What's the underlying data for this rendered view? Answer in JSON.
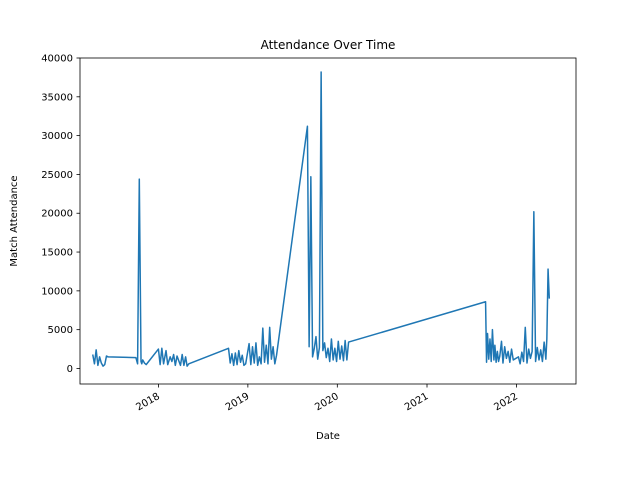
{
  "chart_data": {
    "type": "line",
    "title": "Attendance Over Time",
    "xlabel": "Date",
    "ylabel": "Match Attendance",
    "xlim": [
      "2017-02-15",
      "2022-09-01"
    ],
    "ylim": [
      -2000,
      40000
    ],
    "xticks": [
      {
        "date": "2018-01-01",
        "label": "2018"
      },
      {
        "date": "2019-01-01",
        "label": "2019"
      },
      {
        "date": "2020-01-01",
        "label": "2020"
      },
      {
        "date": "2021-01-01",
        "label": "2021"
      },
      {
        "date": "2022-01-01",
        "label": "2022"
      }
    ],
    "yticks": [
      0,
      5000,
      10000,
      15000,
      20000,
      25000,
      30000,
      35000,
      40000
    ],
    "grid": false,
    "line_color": "#1f77b4",
    "series": [
      {
        "x": [
          "2017-04-08",
          "2017-04-15",
          "2017-04-22",
          "2017-04-29",
          "2017-05-06",
          "2017-05-13",
          "2017-05-20",
          "2017-05-27",
          "2017-06-03",
          "2017-06-10",
          "2017-10-01",
          "2017-10-08",
          "2017-10-15",
          "2017-10-22",
          "2017-10-25",
          "2017-10-29",
          "2017-11-05",
          "2017-11-12",
          "2018-01-01",
          "2018-01-08",
          "2018-01-15",
          "2018-01-22",
          "2018-02-01",
          "2018-02-08",
          "2018-02-18",
          "2018-02-25",
          "2018-03-04",
          "2018-03-11",
          "2018-03-18",
          "2018-03-25",
          "2018-04-01",
          "2018-04-08",
          "2018-04-15",
          "2018-04-22",
          "2018-04-28",
          "2018-05-05",
          "2018-10-14",
          "2018-10-21",
          "2018-10-28",
          "2018-11-04",
          "2018-11-11",
          "2018-11-18",
          "2018-11-25",
          "2018-12-02",
          "2018-12-09",
          "2018-12-16",
          "2018-12-23",
          "2019-01-06",
          "2019-01-13",
          "2019-01-20",
          "2019-01-27",
          "2019-02-03",
          "2019-02-10",
          "2019-02-17",
          "2019-02-24",
          "2019-03-03",
          "2019-03-10",
          "2019-03-17",
          "2019-03-24",
          "2019-03-31",
          "2019-04-07",
          "2019-04-14",
          "2019-04-21",
          "2019-04-28",
          "2019-09-01",
          "2019-09-08",
          "2019-09-15",
          "2019-09-22",
          "2019-09-29",
          "2019-10-06",
          "2019-10-13",
          "2019-10-20",
          "2019-10-27",
          "2019-11-03",
          "2019-11-10",
          "2019-11-17",
          "2019-11-24",
          "2019-12-01",
          "2019-12-08",
          "2019-12-15",
          "2019-12-22",
          "2019-12-29",
          "2020-01-05",
          "2020-01-12",
          "2020-01-19",
          "2020-01-26",
          "2020-02-02",
          "2020-02-09",
          "2020-02-16",
          "2021-08-28",
          "2021-09-01",
          "2021-09-05",
          "2021-09-10",
          "2021-09-15",
          "2021-09-20",
          "2021-09-25",
          "2021-10-01",
          "2021-10-05",
          "2021-10-10",
          "2021-10-15",
          "2021-10-20",
          "2021-10-25",
          "2021-11-01",
          "2021-11-07",
          "2021-11-14",
          "2021-11-21",
          "2021-11-28",
          "2021-12-05",
          "2021-12-12",
          "2021-12-19",
          "2022-01-09",
          "2022-01-16",
          "2022-01-23",
          "2022-01-30",
          "2022-02-06",
          "2022-02-13",
          "2022-02-20",
          "2022-02-27",
          "2022-03-06",
          "2022-03-13",
          "2022-03-20",
          "2022-03-27",
          "2022-04-03",
          "2022-04-10",
          "2022-04-17",
          "2022-04-24",
          "2022-05-01",
          "2022-05-05",
          "2022-05-10",
          "2022-05-15"
        ],
        "y": [
          1800,
          600,
          2400,
          400,
          1500,
          700,
          300,
          500,
          1600,
          1500,
          1400,
          600,
          24400,
          900,
          600,
          1100,
          700,
          500,
          2500,
          500,
          2600,
          600,
          2300,
          500,
          1500,
          900,
          1800,
          400,
          1600,
          1000,
          400,
          1800,
          400,
          1500,
          300,
          600,
          2600,
          700,
          1900,
          400,
          2000,
          500,
          2300,
          800,
          1700,
          400,
          600,
          3200,
          500,
          2800,
          700,
          3300,
          400,
          1500,
          600,
          5200,
          800,
          3000,
          600,
          5300,
          1200,
          2800,
          600,
          1700,
          31200,
          2800,
          24700,
          1500,
          2600,
          4100,
          1200,
          2700,
          38200,
          2300,
          3300,
          1400,
          2600,
          900,
          3800,
          1100,
          2600,
          900,
          3500,
          1200,
          2900,
          1000,
          3600,
          1100,
          3400,
          8600,
          800,
          4500,
          1200,
          3800,
          900,
          5000,
          1100,
          3000,
          800,
          2200,
          900,
          1600,
          3500,
          700,
          2800,
          1300,
          2200,
          800,
          2500,
          1100,
          1500,
          600,
          2100,
          900,
          5300,
          700,
          2500,
          1300,
          2200,
          20200,
          900,
          2700,
          1100,
          2400,
          900,
          3400,
          1200,
          3800,
          12800,
          9000
        ]
      }
    ]
  }
}
